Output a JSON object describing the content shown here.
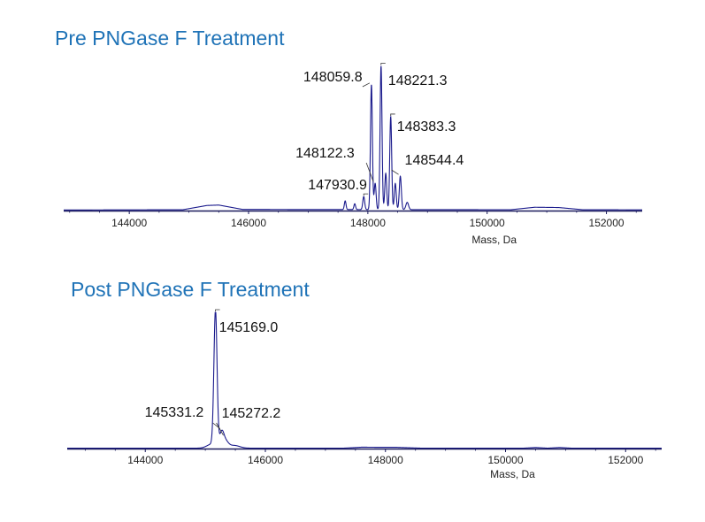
{
  "chart_data": [
    {
      "type": "line",
      "title": "Pre PNGase F Treatment",
      "xlabel": "Mass, Da",
      "ylabel": "",
      "xlim": [
        142900,
        152600
      ],
      "ylim": [
        0,
        100
      ],
      "xticks": [
        144000,
        146000,
        148000,
        150000,
        152000
      ],
      "tick_labels": [
        "144000",
        "146000",
        "148000",
        "150000",
        "152000"
      ],
      "grid": false,
      "color": "#1a1a8c",
      "baseline": [
        [
          142900,
          0.4
        ],
        [
          144900,
          0.6
        ],
        [
          145300,
          3.5
        ],
        [
          145500,
          3.8
        ],
        [
          145900,
          0.8
        ],
        [
          147500,
          0.7
        ],
        [
          150400,
          0.6
        ],
        [
          150800,
          2.3
        ],
        [
          151200,
          2.1
        ],
        [
          151600,
          0.6
        ],
        [
          152600,
          0.5
        ]
      ],
      "peaks": [
        {
          "mass": 147620,
          "height": 6,
          "width": 14
        },
        {
          "mass": 147780,
          "height": 4,
          "width": 14
        },
        {
          "mass": 147930.9,
          "height": 9,
          "width": 16
        },
        {
          "mass": 148059.8,
          "height": 86,
          "width": 16
        },
        {
          "mass": 148122.3,
          "height": 18,
          "width": 16
        },
        {
          "mass": 148221.3,
          "height": 99,
          "width": 16
        },
        {
          "mass": 148300,
          "height": 25,
          "width": 16
        },
        {
          "mass": 148383.3,
          "height": 64,
          "width": 16
        },
        {
          "mass": 148460,
          "height": 18,
          "width": 16
        },
        {
          "mass": 148544.4,
          "height": 23,
          "width": 17
        },
        {
          "mass": 148660,
          "height": 5,
          "width": 22
        }
      ],
      "annotations": [
        {
          "text": "148059.8",
          "mass": 148059.8
        },
        {
          "text": "148221.3",
          "mass": 148221.3
        },
        {
          "text": "148383.3",
          "mass": 148383.3
        },
        {
          "text": "148122.3",
          "mass": 148122.3
        },
        {
          "text": "148544.4",
          "mass": 148544.4
        },
        {
          "text": "147930.9",
          "mass": 147930.9
        }
      ]
    },
    {
      "type": "line",
      "title": "Post PNGase F Treatment",
      "xlabel": "Mass, Da",
      "ylabel": "",
      "xlim": [
        142700,
        152600
      ],
      "ylim": [
        0,
        100
      ],
      "xticks": [
        144000,
        146000,
        148000,
        150000,
        152000
      ],
      "tick_labels": [
        "144000",
        "146000",
        "148000",
        "150000",
        "152000"
      ],
      "grid": false,
      "color": "#1a1a8c",
      "baseline": [
        [
          142700,
          0.3
        ],
        [
          147300,
          0.3
        ],
        [
          147600,
          1.0
        ],
        [
          148200,
          0.9
        ],
        [
          148600,
          0.3
        ],
        [
          150300,
          0.3
        ],
        [
          150500,
          0.8
        ],
        [
          150700,
          0.3
        ],
        [
          150900,
          0.8
        ],
        [
          151100,
          0.3
        ],
        [
          152600,
          0.3
        ]
      ],
      "peaks": [
        {
          "mass": 145169.0,
          "height": 99,
          "width": 26
        },
        {
          "mass": 145110,
          "height": 3,
          "width": 80
        },
        {
          "mass": 145272.2,
          "height": 10,
          "width": 35
        },
        {
          "mass": 145331.2,
          "height": 5,
          "width": 50
        },
        {
          "mass": 145480,
          "height": 2,
          "width": 90
        }
      ],
      "annotations": [
        {
          "text": "145169.0",
          "mass": 145169.0
        },
        {
          "text": "145331.2",
          "mass": 145331.2
        },
        {
          "text": "145272.2",
          "mass": 145272.2
        }
      ]
    }
  ]
}
